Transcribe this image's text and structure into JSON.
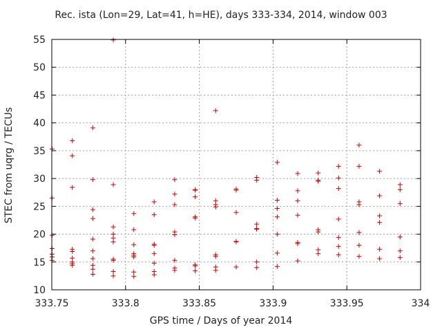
{
  "chart_data": {
    "type": "scatter",
    "title": "Rec. ista (Lon=29, Lat=41, h=HE), days 333-334, 2014, window 003",
    "xlabel": "GPS time / Days of year 2014",
    "ylabel": "STEC from uqrg / TECUs",
    "xlim": [
      333.75,
      334
    ],
    "ylim": [
      10,
      55
    ],
    "xticks": [
      "333.75",
      "333.8",
      "333.85",
      "333.9",
      "333.95",
      "334"
    ],
    "yticks": [
      "10",
      "15",
      "20",
      "25",
      "30",
      "35",
      "40",
      "45",
      "50",
      "55"
    ],
    "grid": true,
    "marker": "+",
    "color": "#cc0000",
    "points": [
      [
        333.7502,
        35.3
      ],
      [
        333.7502,
        26.5
      ],
      [
        333.7502,
        19.8
      ],
      [
        333.7502,
        17.4
      ],
      [
        333.7502,
        16.4
      ],
      [
        333.7502,
        15.9
      ],
      [
        333.7502,
        15.3
      ],
      [
        333.7639,
        36.8
      ],
      [
        333.7639,
        34.1
      ],
      [
        333.7639,
        28.4
      ],
      [
        333.7639,
        17.3
      ],
      [
        333.7639,
        16.9
      ],
      [
        333.7639,
        15.7
      ],
      [
        333.7639,
        15.0
      ],
      [
        333.7639,
        14.7
      ],
      [
        333.7639,
        14.4
      ],
      [
        333.7778,
        39.1
      ],
      [
        333.7778,
        29.8
      ],
      [
        333.7778,
        24.4
      ],
      [
        333.7778,
        22.8
      ],
      [
        333.7778,
        19.1
      ],
      [
        333.7778,
        17.0
      ],
      [
        333.7778,
        15.6
      ],
      [
        333.7778,
        14.4
      ],
      [
        333.7778,
        13.7
      ],
      [
        333.7778,
        12.8
      ],
      [
        333.7917,
        54.9
      ],
      [
        333.7917,
        28.9
      ],
      [
        333.7917,
        21.3
      ],
      [
        333.7917,
        20.0
      ],
      [
        333.7917,
        19.3
      ],
      [
        333.7917,
        18.6
      ],
      [
        333.7917,
        15.5
      ],
      [
        333.7917,
        15.3
      ],
      [
        333.7917,
        13.3
      ],
      [
        333.7917,
        12.5
      ],
      [
        333.8056,
        23.7
      ],
      [
        333.8056,
        20.8
      ],
      [
        333.8056,
        18.1
      ],
      [
        333.8056,
        16.5
      ],
      [
        333.8056,
        16.2
      ],
      [
        333.8056,
        15.9
      ],
      [
        333.8056,
        13.2
      ],
      [
        333.8056,
        12.4
      ],
      [
        333.8194,
        25.8
      ],
      [
        333.8194,
        23.5
      ],
      [
        333.8194,
        18.2
      ],
      [
        333.8194,
        18.0
      ],
      [
        333.8194,
        16.5
      ],
      [
        333.8194,
        14.8
      ],
      [
        333.8194,
        13.3
      ],
      [
        333.8194,
        12.7
      ],
      [
        333.8333,
        29.8
      ],
      [
        333.8333,
        27.2
      ],
      [
        333.8333,
        25.3
      ],
      [
        333.8333,
        20.4
      ],
      [
        333.8333,
        19.9
      ],
      [
        333.8333,
        15.3
      ],
      [
        333.8333,
        13.9
      ],
      [
        333.8333,
        13.5
      ],
      [
        333.8472,
        28.0
      ],
      [
        333.8472,
        27.9
      ],
      [
        333.8472,
        26.7
      ],
      [
        333.8472,
        23.1
      ],
      [
        333.8472,
        22.9
      ],
      [
        333.8472,
        14.5
      ],
      [
        333.8472,
        14.3
      ],
      [
        333.8472,
        13.4
      ],
      [
        333.8611,
        42.2
      ],
      [
        333.8611,
        26.0
      ],
      [
        333.8611,
        25.3
      ],
      [
        333.8611,
        24.9
      ],
      [
        333.8611,
        16.3
      ],
      [
        333.8611,
        16.0
      ],
      [
        333.8611,
        14.1
      ],
      [
        333.8611,
        13.5
      ],
      [
        333.875,
        28.1
      ],
      [
        333.875,
        27.9
      ],
      [
        333.875,
        23.9
      ],
      [
        333.875,
        18.7
      ],
      [
        333.875,
        18.6
      ],
      [
        333.875,
        14.1
      ],
      [
        333.8889,
        30.2
      ],
      [
        333.8889,
        29.7
      ],
      [
        333.8889,
        21.8
      ],
      [
        333.8889,
        21.0
      ],
      [
        333.8889,
        20.9
      ],
      [
        333.8889,
        15.0
      ],
      [
        333.8889,
        14.0
      ],
      [
        333.9028,
        32.9
      ],
      [
        333.9028,
        26.1
      ],
      [
        333.9028,
        24.6
      ],
      [
        333.9028,
        23.1
      ],
      [
        333.9028,
        20.0
      ],
      [
        333.9028,
        16.6
      ],
      [
        333.9028,
        14.2
      ],
      [
        333.9167,
        30.9
      ],
      [
        333.9167,
        27.8
      ],
      [
        333.9167,
        26.0
      ],
      [
        333.9167,
        23.4
      ],
      [
        333.9167,
        18.5
      ],
      [
        333.9167,
        18.3
      ],
      [
        333.9167,
        15.2
      ],
      [
        333.9306,
        31.0
      ],
      [
        333.9306,
        29.7
      ],
      [
        333.9306,
        29.5
      ],
      [
        333.9306,
        20.8
      ],
      [
        333.9306,
        20.4
      ],
      [
        333.9306,
        17.2
      ],
      [
        333.9306,
        16.5
      ],
      [
        333.9444,
        32.2
      ],
      [
        333.9444,
        30.1
      ],
      [
        333.9444,
        28.2
      ],
      [
        333.9444,
        22.7
      ],
      [
        333.9444,
        19.4
      ],
      [
        333.9444,
        17.8
      ],
      [
        333.9444,
        16.3
      ],
      [
        333.9583,
        36.0
      ],
      [
        333.9583,
        32.2
      ],
      [
        333.9583,
        25.8
      ],
      [
        333.9583,
        25.3
      ],
      [
        333.9583,
        20.3
      ],
      [
        333.9583,
        18.0
      ],
      [
        333.9583,
        16.0
      ],
      [
        333.9722,
        31.3
      ],
      [
        333.9722,
        26.9
      ],
      [
        333.9722,
        23.3
      ],
      [
        333.9722,
        22.1
      ],
      [
        333.9722,
        17.3
      ],
      [
        333.9722,
        15.6
      ],
      [
        333.9861,
        28.9
      ],
      [
        333.9861,
        28.0
      ],
      [
        333.9861,
        25.5
      ],
      [
        333.9861,
        19.5
      ],
      [
        333.9861,
        17.0
      ],
      [
        333.9861,
        15.8
      ]
    ]
  }
}
